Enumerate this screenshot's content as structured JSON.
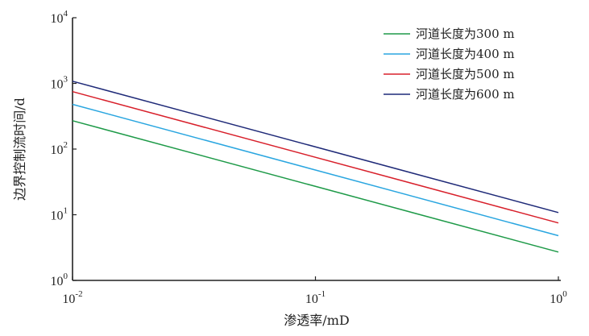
{
  "chart_data": {
    "type": "line",
    "title": "",
    "xlabel": "渗透率/mD",
    "ylabel": "边界控制流时间/d",
    "xscale": "log",
    "yscale": "log",
    "xlim": [
      0.01,
      1
    ],
    "ylim": [
      1,
      10000
    ],
    "xticks": [
      {
        "base": "10",
        "exp": "-2",
        "value": 0.01
      },
      {
        "base": "10",
        "exp": "-1",
        "value": 0.1
      },
      {
        "base": "10",
        "exp": "0",
        "value": 1
      }
    ],
    "yticks": [
      {
        "base": "10",
        "exp": "0",
        "value": 1
      },
      {
        "base": "10",
        "exp": "1",
        "value": 10
      },
      {
        "base": "10",
        "exp": "2",
        "value": 100
      },
      {
        "base": "10",
        "exp": "3",
        "value": 1000
      },
      {
        "base": "10",
        "exp": "4",
        "value": 10000
      }
    ],
    "legend_position": "top-right",
    "series": [
      {
        "name": "河道长度为300 m",
        "color": "#1e9a48",
        "x": [
          0.01,
          1
        ],
        "y": [
          270,
          2.7
        ]
      },
      {
        "name": "河道长度为400 m",
        "color": "#2aa6e0",
        "x": [
          0.01,
          1
        ],
        "y": [
          480,
          4.8
        ]
      },
      {
        "name": "河道长度为500 m",
        "color": "#d8202b",
        "x": [
          0.01,
          1
        ],
        "y": [
          750,
          7.5
        ]
      },
      {
        "name": "河道长度为600 m",
        "color": "#1f2a78",
        "x": [
          0.01,
          1
        ],
        "y": [
          1080,
          10.8
        ]
      }
    ]
  }
}
